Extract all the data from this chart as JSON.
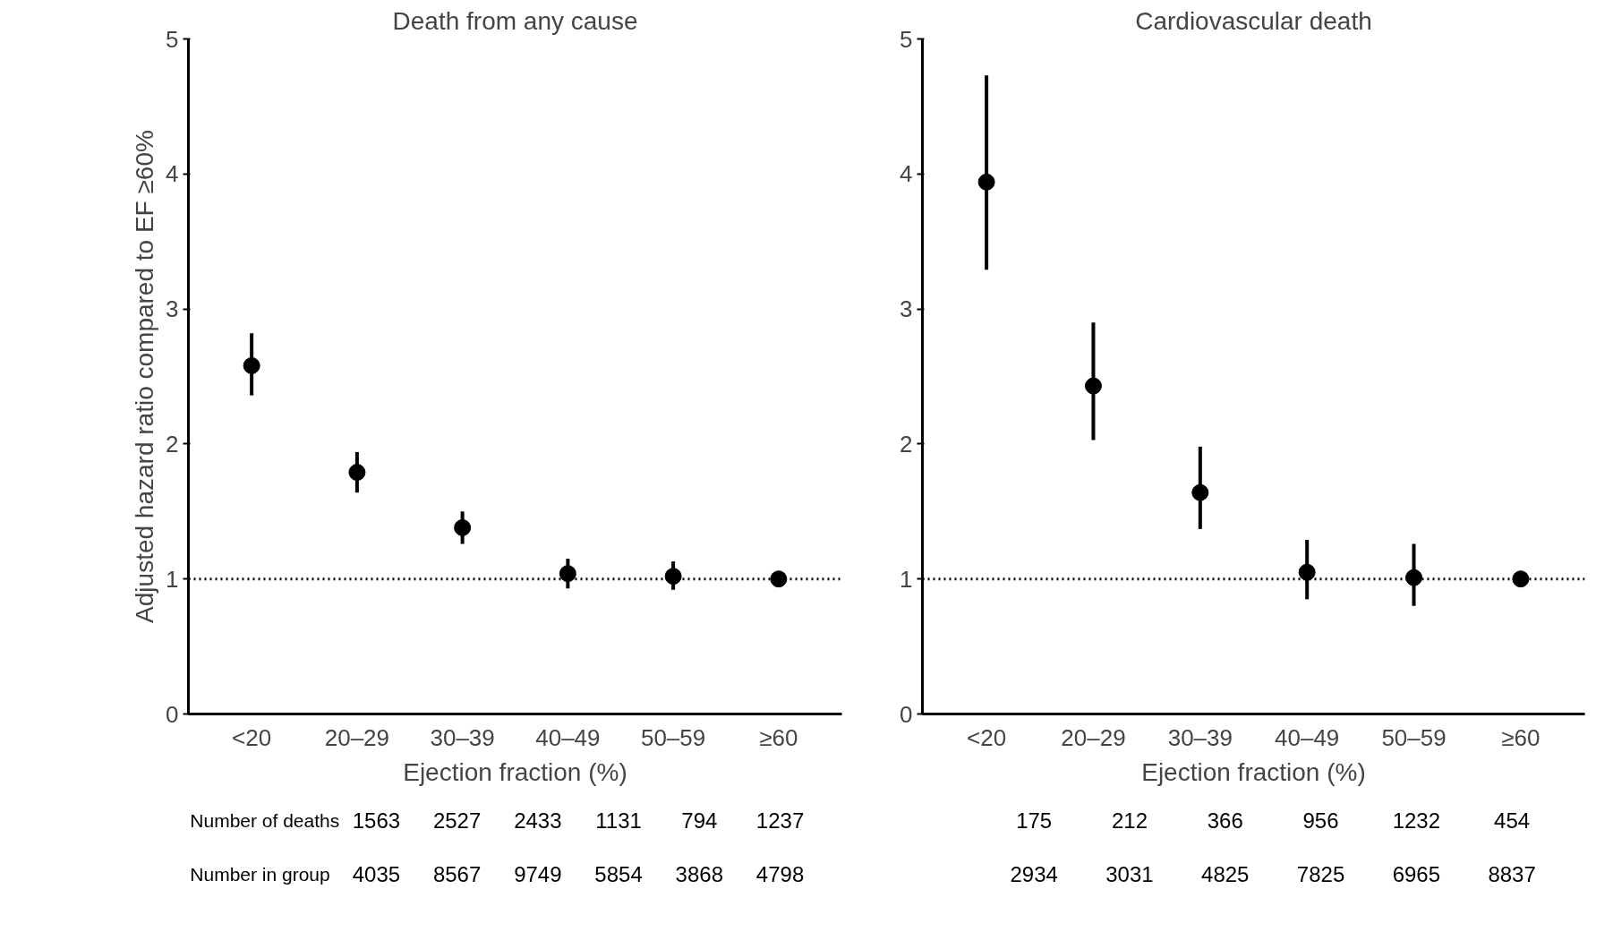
{
  "chart_data": [
    {
      "type": "scatter",
      "title": "Death from any cause",
      "xlabel": "Ejection fraction (%)",
      "ylabel": "Adjusted hazard ratio compared to EF ≥60%",
      "categories": [
        "<20",
        "20–29",
        "30–39",
        "40–49",
        "50–59",
        "≥60"
      ],
      "series": [
        {
          "color": "#000000",
          "values": [
            2.58,
            1.79,
            1.38,
            1.04,
            1.02,
            1.0
          ],
          "errors": [
            [
              2.36,
              2.82
            ],
            [
              1.64,
              1.94
            ],
            [
              1.26,
              1.5
            ],
            [
              0.93,
              1.15
            ],
            [
              0.92,
              1.13
            ],
            null
          ]
        }
      ],
      "ylim": [
        0,
        5
      ],
      "yticks": [
        0,
        1,
        2,
        3,
        4,
        5
      ],
      "grid": false,
      "marker": "circle",
      "ref_lines": [
        {
          "axis": "y",
          "value": 1,
          "label": null,
          "color": "#000000",
          "line_style": "dotted"
        }
      ],
      "annotations": [
        "Number of deaths",
        "Number in group",
        "1563",
        "2527",
        "2433",
        "1131",
        "794",
        "1237",
        "4035",
        "8567",
        "9749",
        "5854",
        "3868",
        "4798"
      ]
    },
    {
      "type": "scatter",
      "title": "Cardiovascular death",
      "xlabel": "Ejection fraction (%)",
      "categories": [
        "<20",
        "20–29",
        "30–39",
        "40–49",
        "50–59",
        "≥60"
      ],
      "series": [
        {
          "color": "#000000",
          "values": [
            3.94,
            2.43,
            1.64,
            1.05,
            1.01,
            1.0
          ],
          "errors": [
            [
              3.29,
              4.73
            ],
            [
              2.03,
              2.9
            ],
            [
              1.37,
              1.98
            ],
            [
              0.85,
              1.29
            ],
            [
              0.8,
              1.26
            ],
            null
          ]
        }
      ],
      "ylim": [
        0,
        5
      ],
      "yticks": [
        0,
        1,
        2,
        3,
        4,
        5
      ],
      "grid": false,
      "marker": "circle",
      "ref_lines": [
        {
          "axis": "y",
          "value": 1,
          "label": null,
          "color": "#000000",
          "line_style": "dotted"
        }
      ],
      "annotations": [
        "175",
        "212",
        "366",
        "956",
        "1232",
        "454",
        "2934",
        "3031",
        "4825",
        "7825",
        "6965",
        "8837"
      ]
    }
  ]
}
